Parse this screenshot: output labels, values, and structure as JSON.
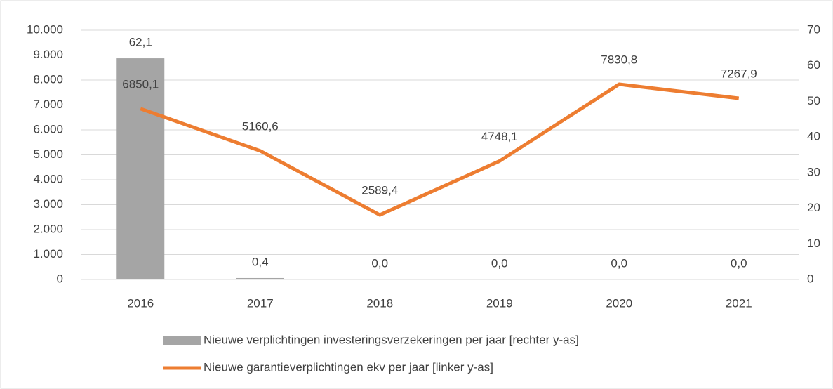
{
  "chart_data": {
    "type": "bar_line",
    "categories": [
      "2016",
      "2017",
      "2018",
      "2019",
      "2020",
      "2021"
    ],
    "series": [
      {
        "name": "Nieuwe verplichtingen investeringsverzekeringen per jaar [rechter y-as]",
        "type": "bar",
        "axis": "y2",
        "color": "#a5a5a5",
        "values": [
          62.1,
          0.4,
          0,
          0,
          0,
          0
        ],
        "value_labels": [
          "62,1",
          "0,4",
          "0,0",
          "0,0",
          "0,0",
          "0,0"
        ]
      },
      {
        "name": "Nieuwe garantieverplichtingen ekv per jaar [linker y-as]",
        "type": "line",
        "axis": "y",
        "color": "#ed7d31",
        "values": [
          6850.1,
          5160.6,
          2589.4,
          4748.1,
          7830.8,
          7267.9
        ],
        "value_labels": [
          "6850,1",
          "5160,6",
          "2589,4",
          "4748,1",
          "7830,8",
          "7267,9"
        ]
      }
    ],
    "ylim": [
      0,
      10000
    ],
    "yticks": [
      0,
      {
        "value": 1000,
        "label": "1.000"
      },
      {
        "value": 2000,
        "label": "2.000"
      },
      {
        "value": 3000,
        "label": "3.000"
      },
      {
        "value": 4000,
        "label": "4.000"
      },
      {
        "value": 5000,
        "label": "5.000"
      },
      {
        "value": 6000,
        "label": "6.000"
      },
      {
        "value": 7000,
        "label": "7.000"
      },
      {
        "value": 8000,
        "label": "8.000"
      },
      {
        "value": 9000,
        "label": "9.000"
      },
      {
        "value": 10000,
        "label": "10.000"
      }
    ],
    "y2lim": [
      0,
      70
    ],
    "y2ticks": [
      0,
      10,
      20,
      30,
      40,
      50,
      60,
      70
    ],
    "grid": true,
    "legend": "bottom"
  }
}
